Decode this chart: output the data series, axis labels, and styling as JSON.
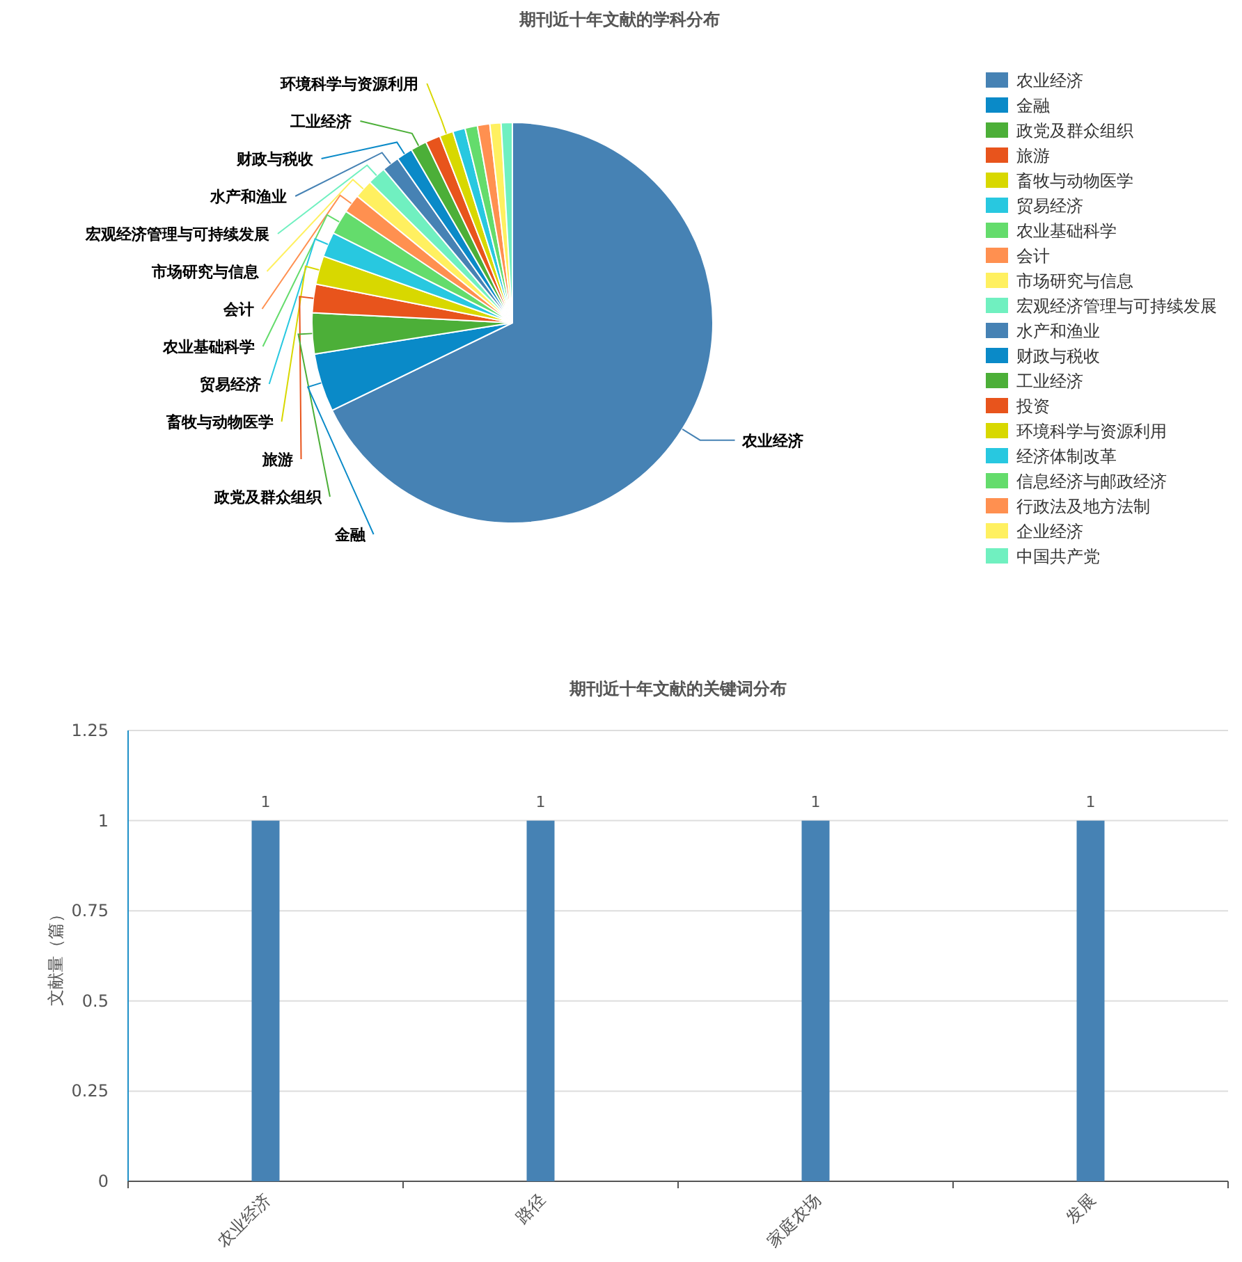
{
  "chart_data": [
    {
      "type": "pie",
      "title": "期刊近十年文献的学科分布",
      "legend": "right",
      "categories": [
        "农业经济",
        "金融",
        "政党及群众组织",
        "旅游",
        "畜牧与动物医学",
        "贸易经济",
        "农业基础科学",
        "会计",
        "市场研究与信息",
        "宏观经济管理与可持续发展",
        "水产和渔业",
        "财政与税收",
        "工业经济",
        "投资",
        "环境科学与资源利用",
        "经济体制改革",
        "信息经济与邮政经济",
        "行政法及地方法制",
        "企业经济",
        "中国共产党"
      ],
      "values": [
        67.8,
        4.7,
        3.3,
        2.3,
        2.3,
        2,
        2,
        1.5,
        1.5,
        1.5,
        1.4,
        1.3,
        1.3,
        1.2,
        1.1,
        1,
        1,
        1,
        0.9,
        0.9
      ],
      "value_labels": [
        "农业经济",
        "金融",
        "政党及群众组织",
        "旅游",
        "畜牧与动物医学",
        "贸易经济",
        "农业基础科学",
        "会计",
        "市场研究与信息",
        "宏观经济管理与可持续发展",
        "水产和渔业",
        "财政与税收",
        "工业经济",
        null,
        "环境科学与资源利用",
        null,
        null,
        null,
        null,
        null
      ],
      "colors": [
        "#4682b4",
        "#0a8ac8",
        "#4caf38",
        "#e8541c",
        "#d8d800",
        "#28c8e0",
        "#64dc6c",
        "#ff9050",
        "#fff060",
        "#70f0c0",
        "#4682b4",
        "#0a8ac8",
        "#4caf38",
        "#e8541c",
        "#d8d800",
        "#28c8e0",
        "#64dc6c",
        "#ff9050",
        "#fff060",
        "#70f0c0"
      ]
    },
    {
      "type": "bar",
      "title": "期刊近十年文献的关键词分布",
      "ylabel": "文献量（篇）",
      "categories": [
        "农业经济",
        "路径",
        "家庭农场",
        "发展"
      ],
      "values": [
        1,
        1,
        1,
        1
      ],
      "color": "#4682b4",
      "data_labels": true,
      "grid": "y",
      "ylim": [
        0,
        1.25
      ],
      "yticks": [
        0,
        0.25,
        0.5,
        0.75,
        1,
        1.25
      ]
    }
  ]
}
